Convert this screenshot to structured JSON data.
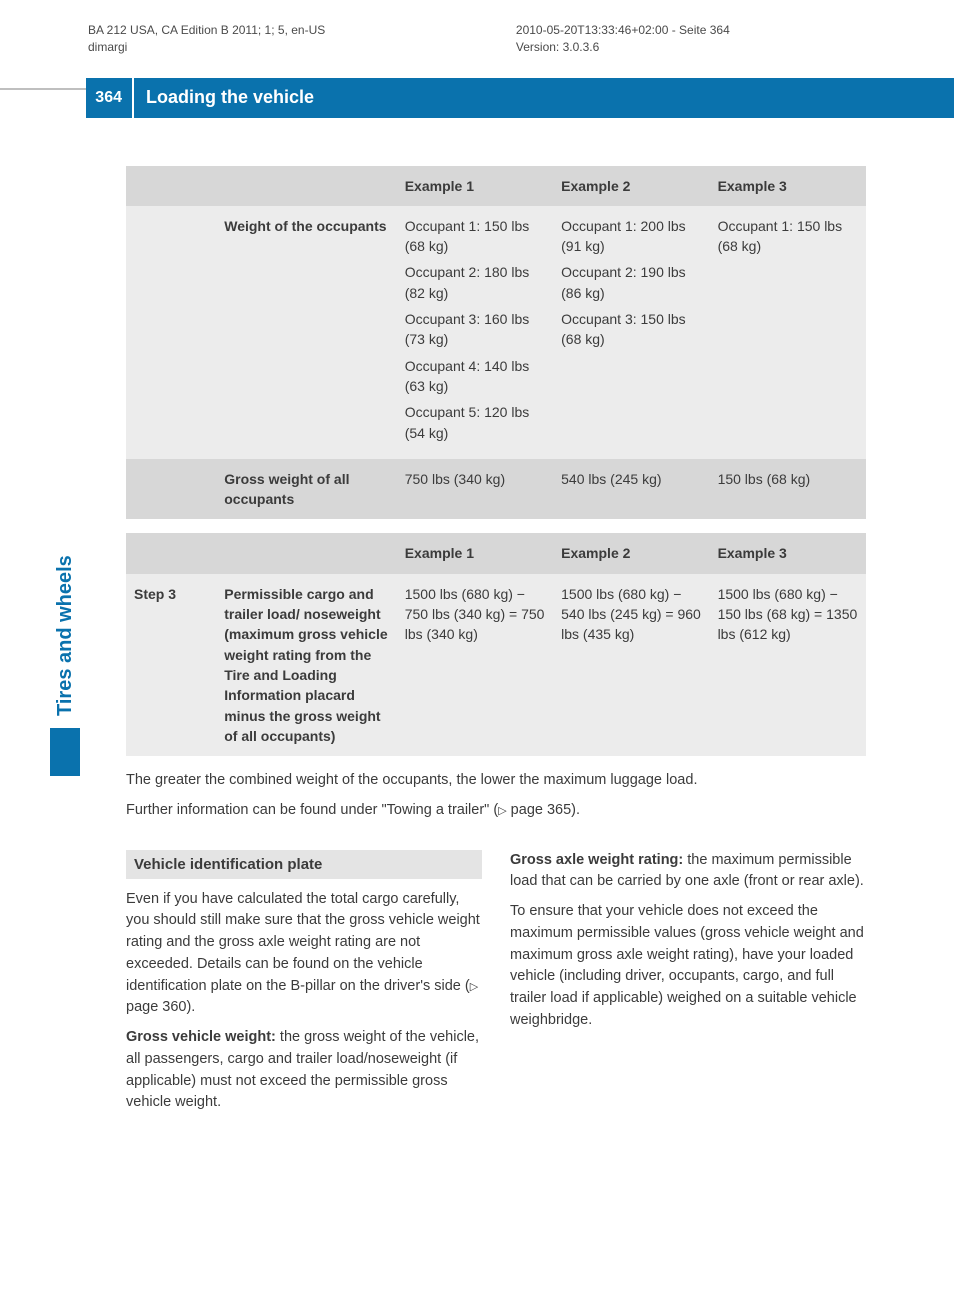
{
  "meta": {
    "left_line1": "BA 212 USA, CA Edition B 2011; 1; 5, en-US",
    "left_line2": "dimargi",
    "right_line1": "2010-05-20T13:33:46+02:00 - Seite 364",
    "right_line2": "Version: 3.0.3.6"
  },
  "banner": {
    "page_number": "364",
    "title": "Loading the vehicle"
  },
  "side_tab": "Tires and wheels",
  "table1": {
    "headers": [
      "",
      "",
      "Example 1",
      "Example 2",
      "Example 3"
    ],
    "rows": [
      {
        "step": "",
        "label": "Weight of the occupants",
        "ex1": [
          "Occupant 1: 150 lbs (68 kg)",
          "Occupant 2: 180 lbs (82 kg)",
          "Occupant 3: 160 lbs (73 kg)",
          "Occupant 4: 140 lbs (63 kg)",
          "Occupant 5: 120 lbs (54 kg)"
        ],
        "ex2": [
          "Occupant 1: 200 lbs (91 kg)",
          "Occupant 2: 190 lbs (86 kg)",
          "Occupant 3: 150 lbs (68 kg)"
        ],
        "ex3": [
          "Occupant 1: 150 lbs (68 kg)"
        ]
      },
      {
        "step": "",
        "label": "Gross weight of all occupants",
        "ex1": [
          "750 lbs (340 kg)"
        ],
        "ex2": [
          "540 lbs (245 kg)"
        ],
        "ex3": [
          "150 lbs (68 kg)"
        ]
      }
    ]
  },
  "table2": {
    "headers": [
      "",
      "",
      "Example 1",
      "Example 2",
      "Example 3"
    ],
    "rows": [
      {
        "step": "Step 3",
        "label": "Permissible cargo and trailer load/ noseweight (maximum gross vehicle weight rating from the Tire and Loading Information placard minus the gross weight of all occupants)",
        "ex1": [
          "1500 lbs (680 kg) − 750 lbs (340 kg) = 750 lbs (340 kg)"
        ],
        "ex2": [
          "1500 lbs (680 kg) − 540 lbs (245 kg) = 960 lbs (435 kg)"
        ],
        "ex3": [
          "1500 lbs (680 kg) − 150 lbs (68 kg) = 1350 lbs (612 kg)"
        ]
      }
    ]
  },
  "paragraphs": {
    "p1": "The greater the combined weight of the occupants, the lower the maximum luggage load.",
    "p2_pre": "Further information can be found under \"Towing a trailer\" (",
    "p2_ref": " page 365).",
    "section_heading": "Vehicle identification plate",
    "left_p1_pre": "Even if you have calculated the total cargo carefully, you should still make sure that the gross vehicle weight rating and the gross axle weight rating are not exceeded. Details can be found on the vehicle identification plate on the B-pillar on the driver's side (",
    "left_p1_ref": " page 360).",
    "left_p2_bold": "Gross vehicle weight:",
    "left_p2": " the gross weight of the vehicle, all passengers, cargo and trailer load/noseweight (if applicable) must not exceed the permissible gross vehicle weight.",
    "right_p1_bold": "Gross axle weight rating:",
    "right_p1": " the maximum permissible load that can be carried by one axle (front or rear axle).",
    "right_p2": "To ensure that your vehicle does not exceed the maximum permissible values (gross vehicle weight and maximum gross axle weight rating), have your loaded vehicle (including driver, occupants, cargo, and full trailer load if applicable) weighed on a suitable vehicle weighbridge."
  },
  "colors": {
    "brand_blue": "#0a72ad",
    "header_gray": "#d7d7d7",
    "row_gray": "#ececec",
    "text": "#3b3b3b"
  }
}
